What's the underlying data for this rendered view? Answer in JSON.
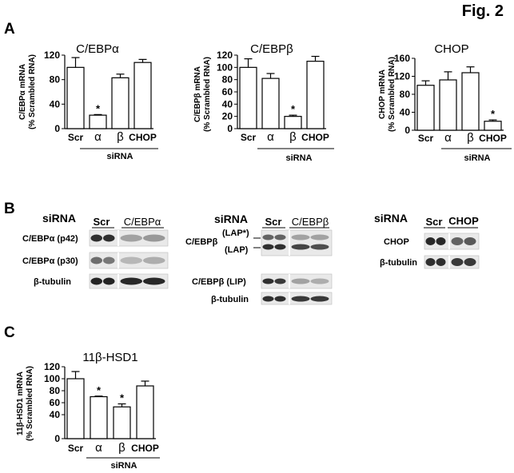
{
  "figure": {
    "title": "Fig. 2"
  },
  "panels": {
    "a": "A",
    "b": "B",
    "c": "C"
  },
  "chart_data": [
    {
      "type": "bar",
      "title": "C/EBPα",
      "ylabel_line1": "C/EBPα mRNA",
      "ylabel_line2": "(% Scrambled RNA)",
      "xlabel": "siRNA",
      "categories": [
        "Scr",
        "α",
        "β",
        "CHOP"
      ],
      "values": [
        100,
        22,
        83,
        108
      ],
      "errors": [
        16,
        1,
        6,
        5
      ],
      "significant": [
        false,
        true,
        false,
        false
      ],
      "sig_marker": "*",
      "ylim": [
        0,
        120
      ],
      "yticks": [
        0,
        40,
        80,
        120
      ],
      "ytick_labels": [
        "0",
        "40",
        "80",
        "120"
      ]
    },
    {
      "type": "bar",
      "title": "C/EBPβ",
      "ylabel_line1": "C/EBPβ mRNA",
      "ylabel_line2": "(% Scrambled RNA)",
      "xlabel": "siRNA",
      "categories": [
        "Scr",
        "α",
        "β",
        "CHOP"
      ],
      "values": [
        100,
        82,
        20,
        110
      ],
      "errors": [
        14,
        8,
        2,
        8
      ],
      "significant": [
        false,
        false,
        true,
        false
      ],
      "sig_marker": "*",
      "ylim": [
        0,
        120
      ],
      "yticks": [
        0,
        20,
        40,
        60,
        80,
        100,
        120
      ],
      "ytick_labels": [
        "0",
        "20",
        "40",
        "60",
        "80",
        "100",
        "120"
      ]
    },
    {
      "type": "bar",
      "title": "CHOP",
      "ylabel_line1": "CHOP mRNA",
      "ylabel_line2": "(% Scrambled RNA)",
      "xlabel": "siRNA",
      "categories": [
        "Scr",
        "α",
        "β",
        "CHOP"
      ],
      "values": [
        100,
        112,
        128,
        20
      ],
      "errors": [
        10,
        18,
        13,
        3
      ],
      "significant": [
        false,
        false,
        false,
        true
      ],
      "sig_marker": "*",
      "ylim": [
        0,
        160
      ],
      "yticks": [
        0,
        40,
        80,
        120,
        160
      ],
      "ytick_labels": [
        "0",
        "40",
        "80",
        "120",
        "160"
      ]
    },
    {
      "type": "bar",
      "title": "11β-HSD1",
      "ylabel_line1": "11β-HSD1 mRNA",
      "ylabel_line2": "(% Scrambled RNA)",
      "xlabel": "siRNA",
      "categories": [
        "Scr",
        "α",
        "β",
        "CHOP"
      ],
      "values": [
        100,
        70,
        53,
        88
      ],
      "errors": [
        12,
        1,
        5,
        8
      ],
      "significant": [
        false,
        true,
        true,
        false
      ],
      "sig_marker": "*",
      "ylim": [
        0,
        120
      ],
      "yticks": [
        0,
        40,
        60,
        80,
        100,
        120
      ],
      "ytick_labels": [
        "0",
        "40",
        "60",
        "80",
        "100",
        "120"
      ]
    }
  ],
  "blots": [
    {
      "sirna_label": "siRNA",
      "group_scr": "Scr",
      "group_ko": "C/EBPα",
      "rows": [
        {
          "label": "C/EBPα (p42)",
          "scr": [
            0.85,
            0.85
          ],
          "ko": [
            0.3,
            0.35
          ]
        },
        {
          "label": "C/EBPα (p30)",
          "scr": [
            0.55,
            0.5
          ],
          "ko": [
            0.2,
            0.25
          ]
        },
        {
          "label": "β-tubulin",
          "scr": [
            0.9,
            0.9
          ],
          "ko": [
            0.88,
            0.88
          ]
        }
      ]
    },
    {
      "sirna_label": "siRNA",
      "group_scr": "Scr",
      "group_ko": "C/EBPβ",
      "label_lap_star": "(LAP*)",
      "label_lap_main": "C/EBPβ",
      "label_lap": "(LAP)",
      "rows": [
        {
          "label": "LAP*",
          "scr": [
            0.6,
            0.6
          ],
          "ko": [
            0.3,
            0.3
          ]
        },
        {
          "label": "LAP",
          "scr": [
            0.85,
            0.85
          ],
          "ko": [
            0.75,
            0.7
          ]
        },
        {
          "label": "C/EBPβ (LIP)",
          "scr": [
            0.85,
            0.8
          ],
          "ko": [
            0.3,
            0.25
          ]
        },
        {
          "label": "β-tubulin",
          "scr": [
            0.85,
            0.85
          ],
          "ko": [
            0.8,
            0.8
          ]
        }
      ]
    },
    {
      "sirna_label": "siRNA",
      "group_scr": "Scr",
      "group_ko": "CHOP",
      "rows": [
        {
          "label": "CHOP",
          "scr": [
            0.88,
            0.88
          ],
          "ko": [
            0.6,
            0.65
          ]
        },
        {
          "label": "β-tubulin",
          "scr": [
            0.85,
            0.85
          ],
          "ko": [
            0.8,
            0.8
          ]
        }
      ]
    }
  ]
}
